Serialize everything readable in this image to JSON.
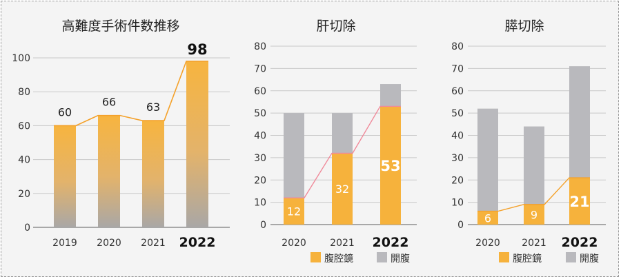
{
  "colors": {
    "orange": "#f6b23c",
    "gray": "#b9b9bd",
    "axis": "#7a7a7a",
    "grid": "#c8c8c8",
    "line_orange": "#f4a12a",
    "line_pink": "#f08a9a"
  },
  "chart_data": [
    {
      "type": "bar",
      "title": "高難度手術件数推移",
      "categories": [
        "2019",
        "2020",
        "2021",
        "2022"
      ],
      "values": [
        60,
        66,
        63,
        98
      ],
      "ylim": [
        0,
        100
      ],
      "yticks": [
        "0",
        "20",
        "40",
        "60",
        "80",
        "100"
      ],
      "value_labels": [
        "60",
        "66",
        "63",
        "98"
      ],
      "bar_style": "vertical gradient orange to gray",
      "connector_line": true,
      "highlight_category": "2022",
      "grid": true
    },
    {
      "type": "bar",
      "title": "肝切除",
      "categories": [
        "2020",
        "2021",
        "2022"
      ],
      "stacked": true,
      "series": [
        {
          "name": "腹腔鏡",
          "values": [
            12,
            32,
            53
          ],
          "labels": [
            "12",
            "32",
            "53"
          ]
        },
        {
          "name": "開腹",
          "values": [
            38,
            18,
            10
          ]
        }
      ],
      "ylim": [
        0,
        80
      ],
      "yticks": [
        "0",
        "10",
        "20",
        "30",
        "40",
        "50",
        "60",
        "70",
        "80"
      ],
      "connector_line": true,
      "highlight_category": "2022",
      "legend": "bottom-right",
      "grid": true
    },
    {
      "type": "bar",
      "title": "膵切除",
      "categories": [
        "2020",
        "2021",
        "2022"
      ],
      "stacked": true,
      "series": [
        {
          "name": "腹腔鏡",
          "values": [
            6,
            9,
            21
          ],
          "labels": [
            "6",
            "9",
            "21"
          ]
        },
        {
          "name": "開腹",
          "values": [
            46,
            35,
            50
          ]
        }
      ],
      "ylim": [
        0,
        80
      ],
      "yticks": [
        "0",
        "10",
        "20",
        "30",
        "40",
        "50",
        "60",
        "70",
        "80"
      ],
      "connector_line": true,
      "highlight_category": "2022",
      "legend": "bottom-right",
      "grid": true
    }
  ]
}
